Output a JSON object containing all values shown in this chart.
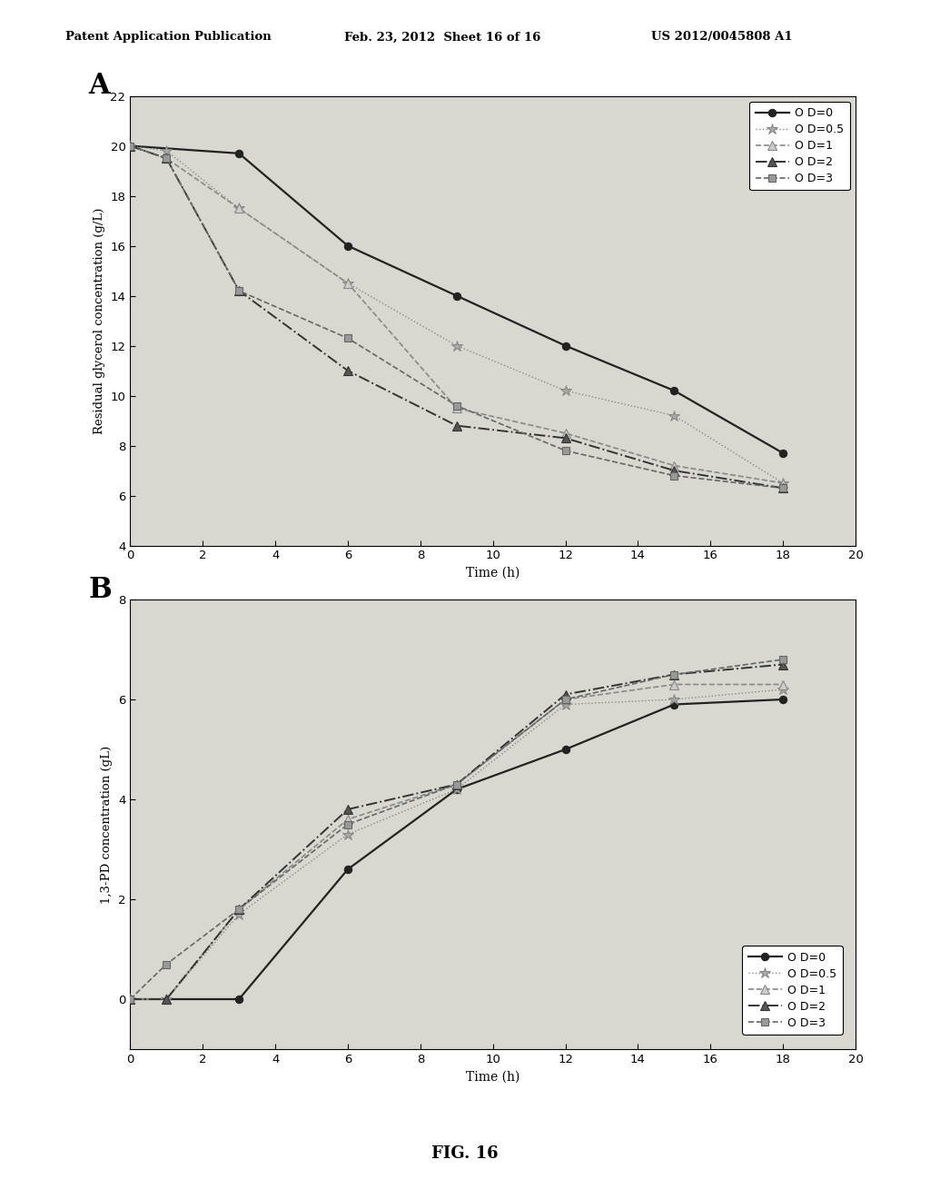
{
  "panel_A": {
    "label": "A",
    "xlabel": "Time (h)",
    "ylabel": "Residual glycerol concentration (g/L)",
    "xlim": [
      0,
      20
    ],
    "ylim": [
      4,
      22
    ],
    "xticks": [
      0,
      2,
      4,
      6,
      8,
      10,
      12,
      14,
      16,
      18,
      20
    ],
    "yticks": [
      4,
      6,
      8,
      10,
      12,
      14,
      16,
      18,
      20,
      22
    ],
    "series": {
      "OD=0": {
        "x": [
          0,
          3,
          6,
          9,
          12,
          15,
          18
        ],
        "y": [
          20.0,
          19.7,
          16.0,
          14.0,
          12.0,
          10.2,
          7.7
        ]
      },
      "OD=0.5": {
        "x": [
          0,
          1,
          3,
          6,
          9,
          12,
          15,
          18
        ],
        "y": [
          20.0,
          19.8,
          17.5,
          14.5,
          12.0,
          10.2,
          9.2,
          6.5
        ]
      },
      "OD=1": {
        "x": [
          0,
          1,
          3,
          6,
          9,
          12,
          15,
          18
        ],
        "y": [
          20.0,
          19.5,
          17.5,
          14.5,
          9.5,
          8.5,
          7.2,
          6.5
        ]
      },
      "OD=2": {
        "x": [
          0,
          1,
          3,
          6,
          9,
          12,
          15,
          18
        ],
        "y": [
          20.0,
          19.5,
          14.2,
          11.0,
          8.8,
          8.3,
          7.0,
          6.3
        ]
      },
      "OD=3": {
        "x": [
          0,
          1,
          3,
          6,
          9,
          12,
          15,
          18
        ],
        "y": [
          20.0,
          19.5,
          14.2,
          12.3,
          9.6,
          7.8,
          6.8,
          6.3
        ]
      }
    }
  },
  "panel_B": {
    "label": "B",
    "xlabel": "Time (h)",
    "ylabel": "1,3-PD concentration (gL)",
    "xlim": [
      0,
      20
    ],
    "ylim": [
      -1,
      8
    ],
    "xticks": [
      0,
      2,
      4,
      6,
      8,
      10,
      12,
      14,
      16,
      18,
      20
    ],
    "yticks": [
      0,
      2,
      4,
      6,
      8
    ],
    "series": {
      "OD=0": {
        "x": [
          0,
          3,
          6,
          9,
          12,
          15,
          18
        ],
        "y": [
          0.0,
          0.0,
          2.6,
          4.2,
          5.0,
          5.9,
          6.0
        ]
      },
      "OD=0.5": {
        "x": [
          0,
          1,
          3,
          6,
          9,
          12,
          15,
          18
        ],
        "y": [
          0.0,
          0.0,
          1.7,
          3.3,
          4.2,
          5.9,
          6.0,
          6.2
        ]
      },
      "OD=1": {
        "x": [
          0,
          1,
          3,
          6,
          9,
          12,
          15,
          18
        ],
        "y": [
          0.0,
          0.0,
          1.8,
          3.6,
          4.3,
          6.0,
          6.3,
          6.3
        ]
      },
      "OD=2": {
        "x": [
          0,
          1,
          3,
          6,
          9,
          12,
          15,
          18
        ],
        "y": [
          0.0,
          0.0,
          1.8,
          3.8,
          4.3,
          6.1,
          6.5,
          6.7
        ]
      },
      "OD=3": {
        "x": [
          0,
          1,
          3,
          6,
          9,
          12,
          15,
          18
        ],
        "y": [
          0.0,
          0.7,
          1.8,
          3.5,
          4.3,
          6.0,
          6.5,
          6.8
        ]
      }
    }
  },
  "header": {
    "left": "Patent Application Publication",
    "center": "Feb. 23, 2012  Sheet 16 of 16",
    "right": "US 2012/0045808 A1"
  },
  "footer": "FIG. 16",
  "background_color": "#ffffff",
  "plot_bg": "#d8d8d0"
}
